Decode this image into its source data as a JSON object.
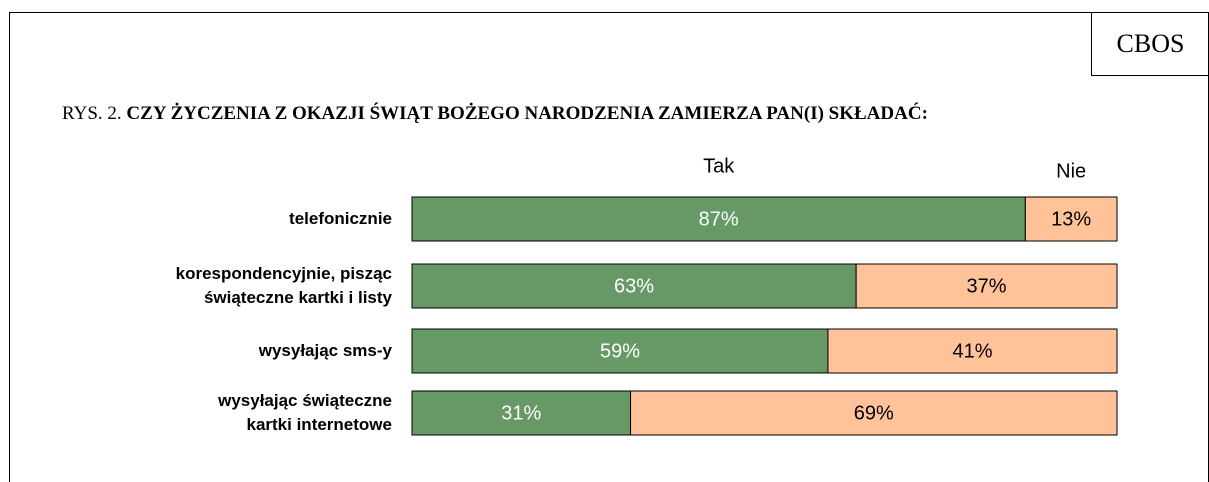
{
  "source": "CBOS",
  "chart_data": {
    "type": "stacked_barh",
    "figure_label": "RYS. 2.",
    "title": "CZY ŻYCZENIA Z OKAZJI ŚWIĄT BOŻEGO NARODZENIA ZAMIERZA PAN(I) SKŁADAĆ:",
    "categories": [
      "telefonicznie",
      "korespondencyjnie, pisząc\nświąteczne kartki i listy",
      "wysyłając sms-y",
      "wysyłając świąteczne\nkartki internetowe"
    ],
    "series": [
      {
        "name": "Tak",
        "color": "#669966",
        "label_color": "#ffffff",
        "values": [
          87,
          63,
          59,
          31
        ],
        "value_labels": [
          "87%",
          "63%",
          "59%",
          "31%"
        ]
      },
      {
        "name": "Nie",
        "color": "#ffc299",
        "label_color": "#000000",
        "values": [
          13,
          37,
          41,
          69
        ],
        "value_labels": [
          "13%",
          "37%",
          "41%",
          "69%"
        ]
      }
    ],
    "xlim": [
      0,
      100
    ]
  }
}
